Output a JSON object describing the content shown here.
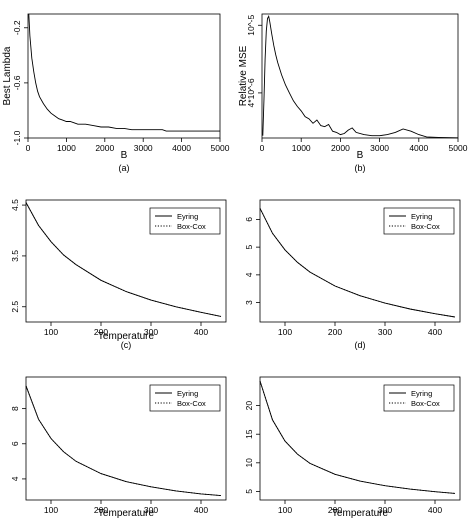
{
  "chart_data": [
    {
      "type": "line",
      "panel_label": "(a)",
      "xlabel": "B",
      "ylabel": "Best Lambda",
      "xlim": [
        0,
        5000
      ],
      "ylim": [
        -1.0,
        -0.1
      ],
      "xticks": [
        0,
        1000,
        2000,
        3000,
        4000,
        5000
      ],
      "xtick_labels": [
        "0",
        "1000",
        "2000",
        "3000",
        "4000",
        "5000"
      ],
      "yticks": [
        -1.0,
        -0.6,
        -0.2
      ],
      "ytick_labels": [
        "-1.0",
        "-0.6",
        "-0.2"
      ],
      "series": [
        {
          "x": [
            20,
            50,
            100,
            150,
            200,
            250,
            300,
            400,
            500,
            600,
            700,
            800,
            900,
            1000,
            1100,
            1200,
            1300,
            1500,
            1700,
            1900,
            2100,
            2300,
            2500,
            2700,
            3000,
            3500,
            3600,
            4000,
            4500,
            5000
          ],
          "y": [
            -0.1,
            -0.26,
            -0.42,
            -0.52,
            -0.6,
            -0.66,
            -0.7,
            -0.75,
            -0.79,
            -0.82,
            -0.84,
            -0.86,
            -0.87,
            -0.88,
            -0.88,
            -0.89,
            -0.9,
            -0.9,
            -0.91,
            -0.92,
            -0.92,
            -0.93,
            -0.93,
            -0.94,
            -0.94,
            -0.94,
            -0.95,
            -0.95,
            -0.95,
            -0.95
          ]
        }
      ]
    },
    {
      "type": "line",
      "panel_label": "(b)",
      "xlabel": "B",
      "ylabel": "Relative MSE",
      "xlim": [
        0,
        5000
      ],
      "ylim": [
        0,
        1.1e-05
      ],
      "xticks": [
        0,
        1000,
        2000,
        3000,
        4000,
        5000
      ],
      "xtick_labels": [
        "0",
        "1000",
        "2000",
        "3000",
        "4000",
        "5000"
      ],
      "yticks": [
        4e-06,
        1e-05
      ],
      "ytick_labels": [
        "4*10^-6",
        "10^-5"
      ],
      "series": [
        {
          "x": [
            20,
            50,
            80,
            110,
            140,
            170,
            200,
            250,
            300,
            350,
            400,
            500,
            600,
            700,
            800,
            900,
            1000,
            1100,
            1200,
            1300,
            1400,
            1500,
            1600,
            1700,
            1800,
            1900,
            2000,
            2100,
            2200,
            2300,
            2400,
            2600,
            2800,
            3000,
            3200,
            3400,
            3600,
            3800,
            4000,
            4200,
            4500,
            5000
          ],
          "y": [
            2e-07,
            3.5e-06,
            7e-06,
            9.5e-06,
            1.06e-05,
            1.08e-05,
            1.03e-05,
            9.2e-06,
            8.2e-06,
            7.4e-06,
            6.7e-06,
            5.6e-06,
            4.7e-06,
            4e-06,
            3.3e-06,
            2.8e-06,
            2.4e-06,
            1.9e-06,
            1.7e-06,
            1.3e-06,
            1.6e-06,
            1.1e-06,
            1e-06,
            1.2e-06,
            6e-07,
            5e-07,
            3e-07,
            4e-07,
            7e-07,
            9e-07,
            5e-07,
            3e-07,
            2e-07,
            2e-07,
            3e-07,
            5e-07,
            8e-07,
            6e-07,
            3e-07,
            1e-07,
            5e-08,
            2e-08
          ]
        }
      ]
    },
    {
      "type": "line",
      "panel_label": "(c)",
      "xlabel": "Temperature",
      "ylabel": "",
      "xlim": [
        50,
        450
      ],
      "ylim": [
        2.2,
        4.6
      ],
      "xticks": [
        100,
        200,
        300,
        400
      ],
      "xtick_labels": [
        "100",
        "200",
        "300",
        "400"
      ],
      "yticks": [
        2.5,
        3.5,
        4.5
      ],
      "ytick_labels": [
        "2.5",
        "3.5",
        "4.5"
      ],
      "legend_position": "top-right",
      "series": [
        {
          "name": "Eyring",
          "style": "solid",
          "x": [
            50,
            75,
            100,
            125,
            150,
            200,
            250,
            300,
            350,
            400,
            440
          ],
          "y": [
            4.55,
            4.1,
            3.78,
            3.52,
            3.33,
            3.02,
            2.8,
            2.63,
            2.5,
            2.39,
            2.31
          ]
        },
        {
          "name": "Box-Cox",
          "style": "dotted",
          "x": [
            50,
            75,
            100,
            125,
            150,
            200,
            250,
            300,
            350,
            400,
            440
          ],
          "y": [
            4.55,
            4.1,
            3.78,
            3.52,
            3.33,
            3.02,
            2.8,
            2.63,
            2.5,
            2.39,
            2.31
          ]
        }
      ]
    },
    {
      "type": "line",
      "panel_label": "(d)",
      "xlabel": "",
      "ylabel": "",
      "xlim": [
        50,
        450
      ],
      "ylim": [
        2.3,
        6.7
      ],
      "xticks": [
        100,
        200,
        300,
        400
      ],
      "xtick_labels": [
        "100",
        "200",
        "300",
        "400"
      ],
      "yticks": [
        3,
        4,
        5,
        6
      ],
      "ytick_labels": [
        "3",
        "4",
        "5",
        "6"
      ],
      "legend_position": "top-right",
      "series": [
        {
          "name": "Eyring",
          "style": "solid",
          "x": [
            50,
            75,
            100,
            125,
            150,
            200,
            250,
            300,
            350,
            400,
            440
          ],
          "y": [
            6.4,
            5.5,
            4.9,
            4.45,
            4.1,
            3.6,
            3.25,
            2.98,
            2.77,
            2.6,
            2.48
          ]
        },
        {
          "name": "Box-Cox",
          "style": "dotted",
          "x": [
            50,
            75,
            100,
            125,
            150,
            200,
            250,
            300,
            350,
            400,
            440
          ],
          "y": [
            6.4,
            5.5,
            4.9,
            4.45,
            4.1,
            3.6,
            3.25,
            2.98,
            2.77,
            2.6,
            2.48
          ]
        }
      ]
    },
    {
      "type": "line",
      "panel_label": "",
      "xlabel": "Temperature",
      "ylabel": "",
      "xlim": [
        50,
        450
      ],
      "ylim": [
        2.8,
        9.8
      ],
      "xticks": [
        100,
        200,
        300,
        400
      ],
      "xtick_labels": [
        "100",
        "200",
        "300",
        "400"
      ],
      "yticks": [
        4,
        6,
        8
      ],
      "ytick_labels": [
        "4",
        "6",
        "8"
      ],
      "legend_position": "top-right",
      "series": [
        {
          "name": "Eyring",
          "style": "solid",
          "x": [
            50,
            75,
            100,
            125,
            150,
            200,
            250,
            300,
            350,
            400,
            440
          ],
          "y": [
            9.3,
            7.4,
            6.3,
            5.55,
            5.0,
            4.3,
            3.85,
            3.55,
            3.32,
            3.15,
            3.05
          ]
        },
        {
          "name": "Box-Cox",
          "style": "dotted",
          "x": [
            50,
            75,
            100,
            125,
            150,
            200,
            250,
            300,
            350,
            400,
            440
          ],
          "y": [
            9.3,
            7.4,
            6.3,
            5.55,
            5.0,
            4.3,
            3.85,
            3.55,
            3.32,
            3.15,
            3.05
          ]
        }
      ]
    },
    {
      "type": "line",
      "panel_label": "",
      "xlabel": "Temperature",
      "ylabel": "",
      "xlim": [
        50,
        450
      ],
      "ylim": [
        3.5,
        25
      ],
      "xticks": [
        100,
        200,
        300,
        400
      ],
      "xtick_labels": [
        "100",
        "200",
        "300",
        "400"
      ],
      "yticks": [
        5,
        10,
        15,
        20
      ],
      "ytick_labels": [
        "5",
        "10",
        "15",
        "20"
      ],
      "legend_position": "top-right",
      "series": [
        {
          "name": "Eyring",
          "style": "solid",
          "x": [
            50,
            75,
            100,
            125,
            150,
            200,
            250,
            300,
            350,
            400,
            440
          ],
          "y": [
            24.3,
            17.5,
            13.8,
            11.5,
            9.9,
            8.0,
            6.8,
            6.0,
            5.4,
            4.95,
            4.65
          ]
        },
        {
          "name": "Box-Cox",
          "style": "dotted",
          "x": [
            50,
            75,
            100,
            125,
            150,
            200,
            250,
            300,
            350,
            400,
            440
          ],
          "y": [
            24.3,
            17.5,
            13.8,
            11.5,
            9.9,
            8.0,
            6.8,
            6.0,
            5.4,
            4.95,
            4.65
          ]
        }
      ]
    }
  ]
}
